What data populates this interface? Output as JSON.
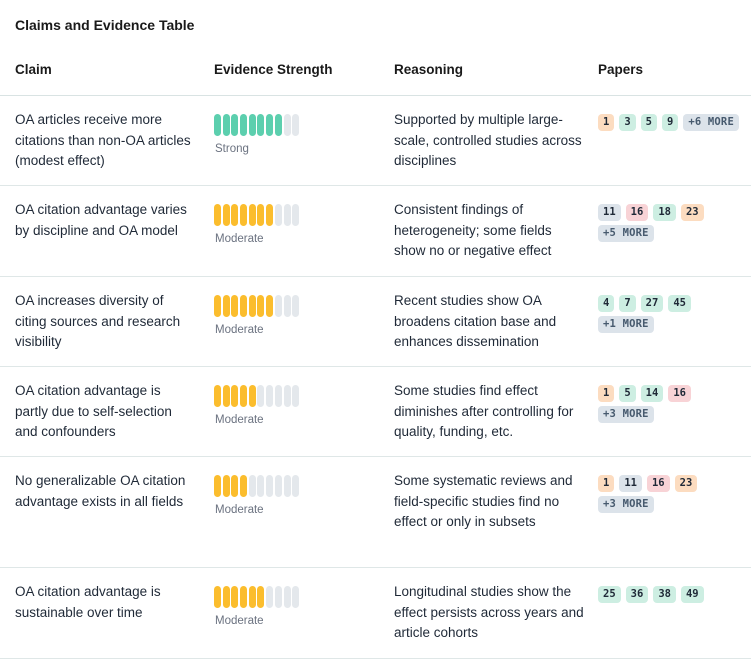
{
  "title": "Claims and Evidence Table",
  "headers": {
    "claim": "Claim",
    "strength": "Evidence Strength",
    "reasoning": "Reasoning",
    "papers": "Papers"
  },
  "colors": {
    "strong": "#5ccfae",
    "moderate": "#fbbd2d",
    "empty": "#e4e8ec",
    "paper_green": "#cdeee2",
    "paper_orange": "#fcdcc0",
    "paper_pink": "#f8d3d6",
    "more": "#dce3ea"
  },
  "rows": [
    {
      "claim": "OA articles receive more citations than non-OA articles (modest effect)",
      "strength_label": "Strong",
      "strength_level": "strong",
      "filled": 8,
      "total": 10,
      "reasoning": "Supported by multiple large-scale, controlled studies across disciplines",
      "papers": [
        {
          "id": "1",
          "tone": "orange"
        },
        {
          "id": "3",
          "tone": "green"
        },
        {
          "id": "5",
          "tone": "green"
        },
        {
          "id": "9",
          "tone": "green"
        }
      ],
      "more": "+6 MORE",
      "more_inline": true
    },
    {
      "claim": "OA citation advantage varies by discipline and OA model",
      "strength_label": "Moderate",
      "strength_level": "moderate",
      "filled": 7,
      "total": 10,
      "reasoning": "Consistent findings of heterogeneity; some fields show no or negative effect",
      "papers": [
        {
          "id": "11",
          "tone": "blue"
        },
        {
          "id": "16",
          "tone": "pink"
        },
        {
          "id": "18",
          "tone": "green"
        },
        {
          "id": "23",
          "tone": "orange"
        }
      ],
      "more": "+5 MORE",
      "more_inline": false
    },
    {
      "claim": "OA increases diversity of citing sources and research visibility",
      "strength_label": "Moderate",
      "strength_level": "moderate",
      "filled": 7,
      "total": 10,
      "reasoning": "Recent studies show OA broadens citation base and enhances dissemination",
      "papers": [
        {
          "id": "4",
          "tone": "green"
        },
        {
          "id": "7",
          "tone": "green"
        },
        {
          "id": "27",
          "tone": "green"
        },
        {
          "id": "45",
          "tone": "green"
        }
      ],
      "more": "+1 MORE",
      "more_inline": false
    },
    {
      "claim": "OA citation advantage is partly due to self-selection and confounders",
      "strength_label": "Moderate",
      "strength_level": "moderate",
      "filled": 5,
      "total": 10,
      "reasoning": "Some studies find effect diminishes after controlling for quality, funding, etc.",
      "papers": [
        {
          "id": "1",
          "tone": "orange"
        },
        {
          "id": "5",
          "tone": "green"
        },
        {
          "id": "14",
          "tone": "green"
        },
        {
          "id": "16",
          "tone": "pink"
        }
      ],
      "more": "+3 MORE",
      "more_inline": false
    },
    {
      "claim": "No generalizable OA citation advantage exists in all fields",
      "strength_label": "Moderate",
      "strength_level": "moderate",
      "filled": 4,
      "total": 10,
      "reasoning": "Some systematic reviews and field-specific studies find no effect or only in subsets",
      "papers": [
        {
          "id": "1",
          "tone": "orange"
        },
        {
          "id": "11",
          "tone": "blue"
        },
        {
          "id": "16",
          "tone": "pink"
        },
        {
          "id": "23",
          "tone": "orange"
        }
      ],
      "more": "+3 MORE",
      "more_inline": false
    },
    {
      "claim": "OA citation advantage is sustainable over time",
      "strength_label": "Moderate",
      "strength_level": "moderate",
      "filled": 6,
      "total": 10,
      "reasoning": "Longitudinal studies show the effect persists across years and article cohorts",
      "papers": [
        {
          "id": "25",
          "tone": "green"
        },
        {
          "id": "36",
          "tone": "green"
        },
        {
          "id": "38",
          "tone": "green"
        },
        {
          "id": "49",
          "tone": "green"
        }
      ],
      "more": "",
      "more_inline": false
    }
  ]
}
